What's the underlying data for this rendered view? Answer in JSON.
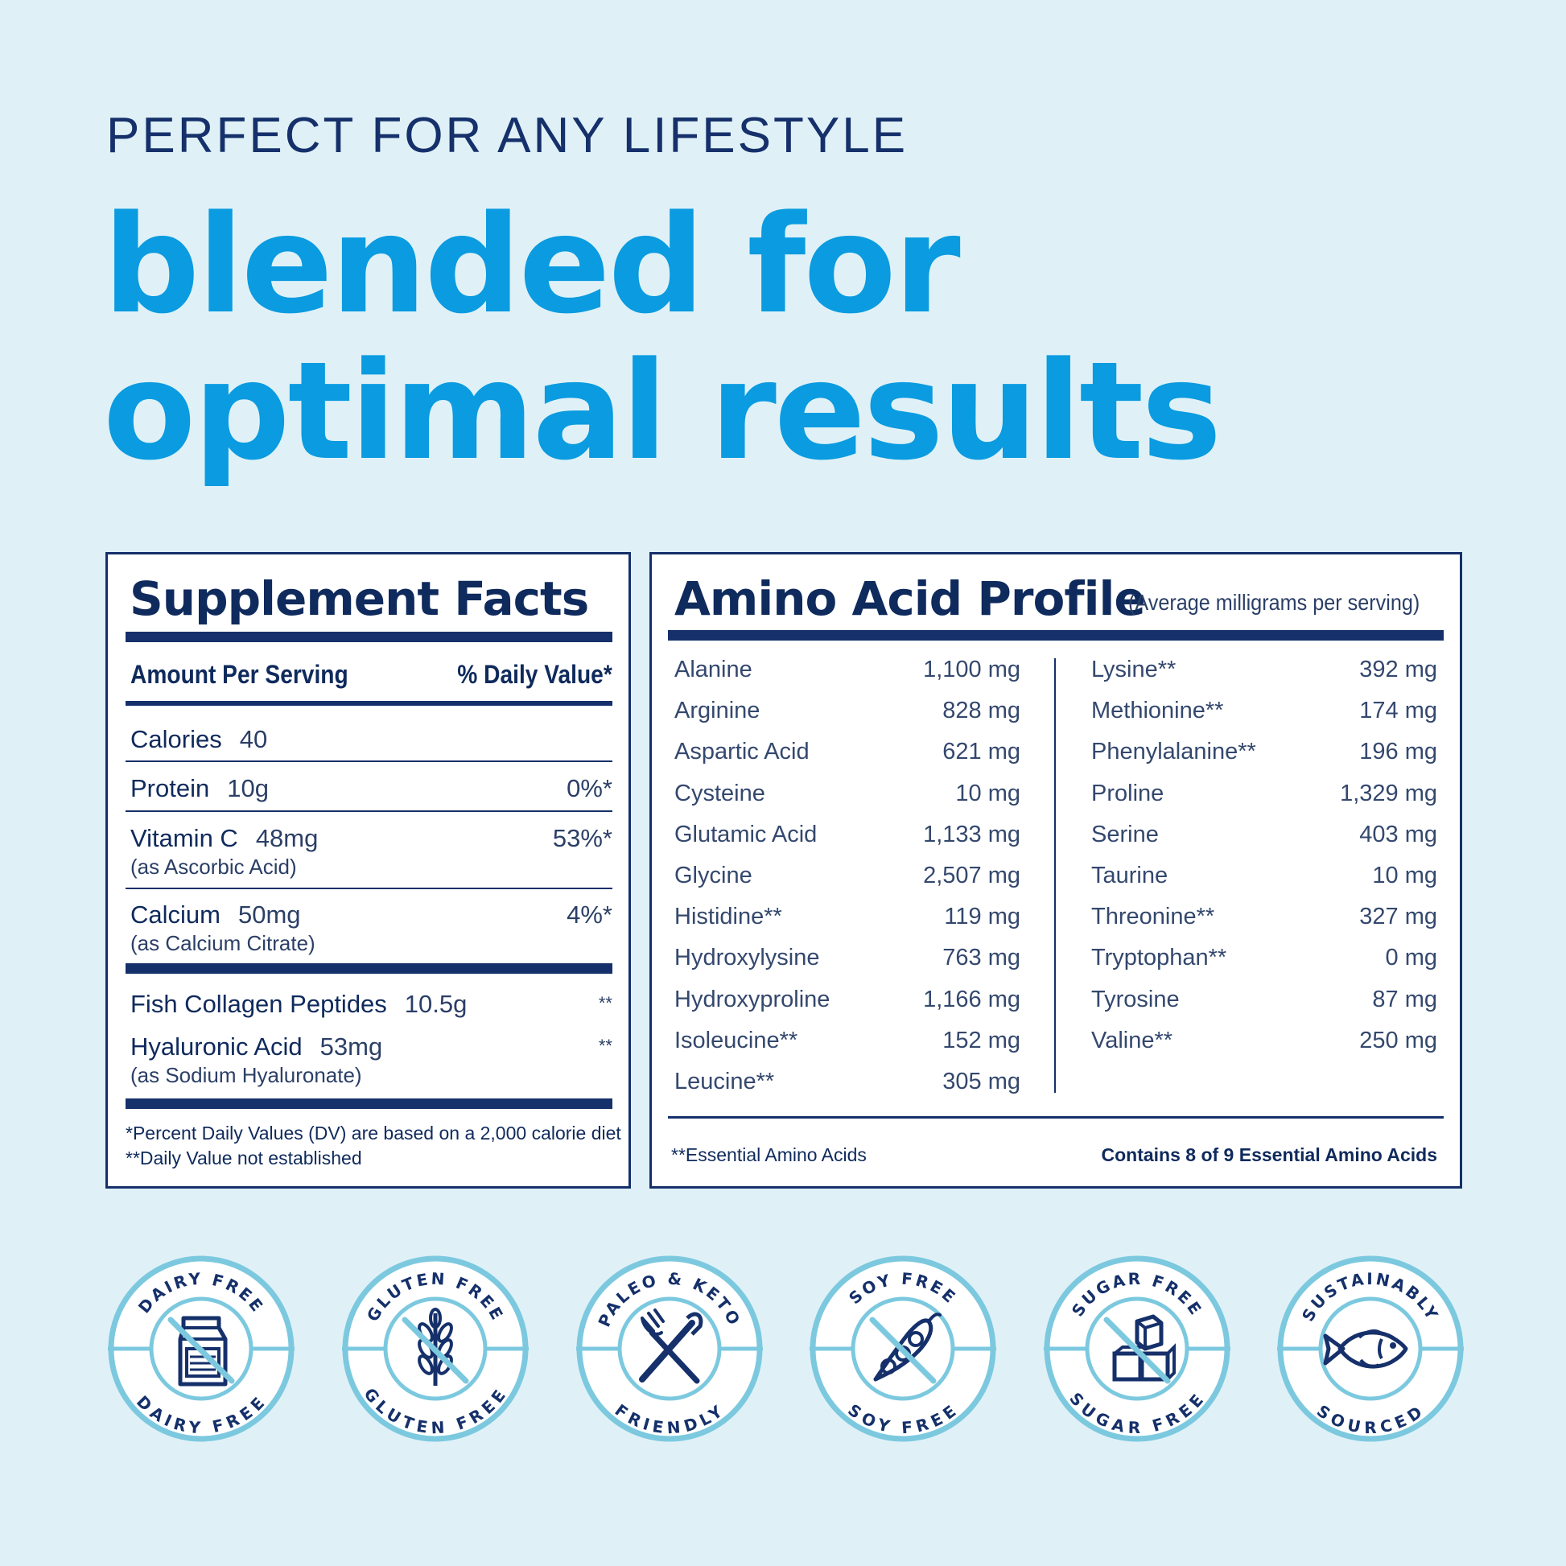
{
  "header": {
    "kicker": "PERFECT FOR ANY LIFESTYLE",
    "headline_line1": "blended for",
    "headline_line2": "optimal results"
  },
  "supplement_facts": {
    "title": "Supplement Facts",
    "col_amount": "Amount Per Serving",
    "col_dv": "% Daily Value*",
    "rows": [
      {
        "name": "Calories",
        "amount": "40",
        "dv": "",
        "note": ""
      },
      {
        "name": "Protein",
        "amount": "10g",
        "dv": "0%*",
        "note": ""
      },
      {
        "name": "Vitamin C",
        "amount": "48mg",
        "dv": "53%*",
        "note": "(as Ascorbic Acid)"
      },
      {
        "name": "Calcium",
        "amount": "50mg",
        "dv": "4%*",
        "note": "(as Calcium Citrate)"
      },
      {
        "name": "Fish Collagen Peptides",
        "amount": "10.5g",
        "dv": "**",
        "note": ""
      },
      {
        "name": "Hyaluronic Acid",
        "amount": "53mg",
        "dv": "**",
        "note": "(as Sodium Hyaluronate)"
      }
    ],
    "footnote1": "*Percent Daily Values (DV) are based on a 2,000 calorie diet",
    "footnote2": "**Daily Value not established"
  },
  "amino_profile": {
    "title": "Amino Acid Profile",
    "subtitle": "(Average milligrams per serving)",
    "left": [
      {
        "name": "Alanine",
        "value": "1,100 mg"
      },
      {
        "name": "Arginine",
        "value": "828 mg"
      },
      {
        "name": "Aspartic Acid",
        "value": "621 mg"
      },
      {
        "name": "Cysteine",
        "value": "10 mg"
      },
      {
        "name": "Glutamic Acid",
        "value": "1,133 mg"
      },
      {
        "name": "Glycine",
        "value": "2,507 mg"
      },
      {
        "name": "Histidine**",
        "value": "119 mg"
      },
      {
        "name": "Hydroxylysine",
        "value": "763 mg"
      },
      {
        "name": "Hydroxyproline",
        "value": "1,166 mg"
      },
      {
        "name": "Isoleucine**",
        "value": "152 mg"
      },
      {
        "name": "Leucine**",
        "value": "305 mg"
      }
    ],
    "right": [
      {
        "name": "Lysine**",
        "value": "392 mg"
      },
      {
        "name": "Methionine**",
        "value": "174 mg"
      },
      {
        "name": "Phenylalanine**",
        "value": "196 mg"
      },
      {
        "name": "Proline",
        "value": "1,329 mg"
      },
      {
        "name": "Serine",
        "value": "403 mg"
      },
      {
        "name": "Taurine",
        "value": "10 mg"
      },
      {
        "name": "Threonine**",
        "value": "327 mg"
      },
      {
        "name": "Tryptophan**",
        "value": "0 mg"
      },
      {
        "name": "Tyrosine",
        "value": "87 mg"
      },
      {
        "name": "Valine**",
        "value": "250 mg"
      }
    ],
    "footnote_left": "**Essential Amino Acids",
    "footnote_right": "Contains 8 of 9 Essential Amino Acids"
  },
  "badges": [
    {
      "top": "DAIRY FREE",
      "bottom": "DAIRY FREE",
      "icon": "milk-carton-icon"
    },
    {
      "top": "GLUTEN FREE",
      "bottom": "GLUTEN FREE",
      "icon": "wheat-icon"
    },
    {
      "top": "PALEO & KETO",
      "bottom": "FRIENDLY",
      "icon": "fork-knife-icon"
    },
    {
      "top": "SOY FREE",
      "bottom": "SOY FREE",
      "icon": "soybean-icon"
    },
    {
      "top": "SUGAR FREE",
      "bottom": "SUGAR FREE",
      "icon": "sugar-cubes-icon"
    },
    {
      "top": "SUSTAINABLY",
      "bottom": "SOURCED",
      "icon": "fish-icon"
    }
  ],
  "colors": {
    "background": "#dff1f7",
    "headline_blue": "#0a9be0",
    "navy": "#15306a",
    "badge_ring": "#7cc9df"
  }
}
